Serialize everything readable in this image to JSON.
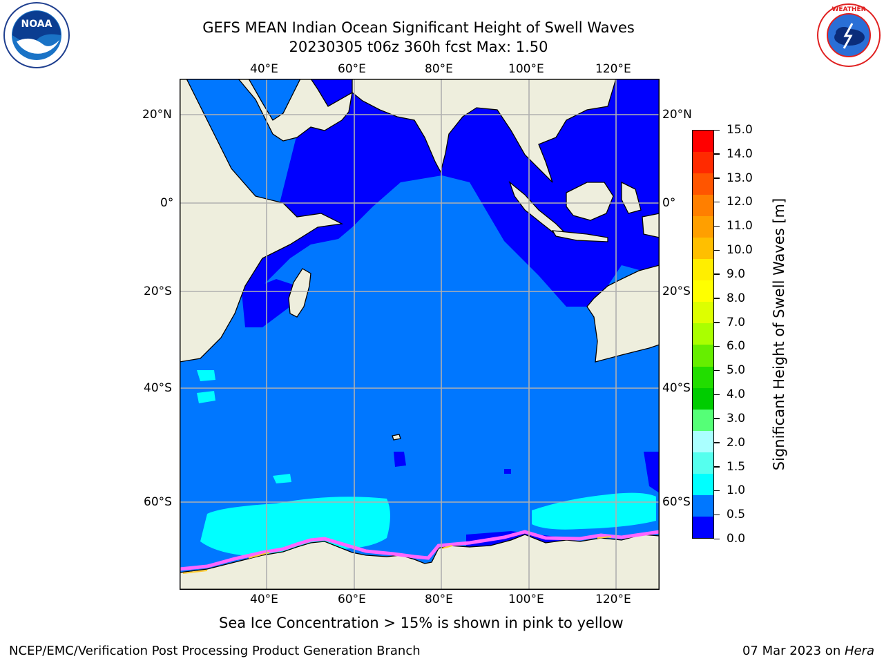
{
  "header": {
    "title_line1": "GEFS MEAN Indian Ocean Significant Height of Swell Waves",
    "title_line2": "20230305 t06z 360h fcst   Max: 1.50"
  },
  "logos": {
    "noaa": {
      "text": "NOAA",
      "ring_text": "NATIONAL OCEANIC AND ATMOSPHERIC ADMINISTRATION · U.S. DEPARTMENT OF COMMERCE"
    },
    "nws": {
      "ring_text": "NATIONAL WEATHER SERVICE"
    }
  },
  "map": {
    "lon_labels": [
      "40°E",
      "60°E",
      "80°E",
      "100°E",
      "120°E"
    ],
    "lat_labels": [
      "20°N",
      "0°",
      "20°S",
      "40°S",
      "60°S"
    ],
    "lon_range": [
      20.5,
      130.5
    ],
    "lat_range": [
      -84,
      27
    ]
  },
  "colorbar": {
    "label": "Significant Height of Swell Waves [m]",
    "ticks": [
      "15.0",
      "14.0",
      "13.0",
      "12.0",
      "11.0",
      "10.0",
      "9.0",
      "8.0",
      "7.0",
      "6.0",
      "5.0",
      "4.0",
      "3.0",
      "2.0",
      "1.5",
      "1.0",
      "0.5",
      "0.0"
    ],
    "colors_top_to_bottom": [
      "#ff0000",
      "#ff2a00",
      "#ff5500",
      "#ff7f00",
      "#ff9f00",
      "#ffbf00",
      "#ffee00",
      "#ffff00",
      "#ddff00",
      "#aaff00",
      "#66ee00",
      "#22dd00",
      "#00cc00",
      "#55ff77",
      "#aaffff",
      "#55ffee",
      "#00ffff",
      "#0077ff",
      "#0000ff"
    ]
  },
  "note": "Sea Ice Concentration > 15% is shown in pink to yellow",
  "footer": {
    "left": "NCEP/EMC/Verification Post Processing Product Generation Branch",
    "right_date": "07 Mar 2023 on ",
    "right_machine": "Hera"
  },
  "colors": {
    "ocean_main": "#0077ff",
    "ocean_low": "#0000ff",
    "ocean_mid": "#00ffff",
    "land": "#eeeedd",
    "ice_edge": "#ff66ff"
  }
}
